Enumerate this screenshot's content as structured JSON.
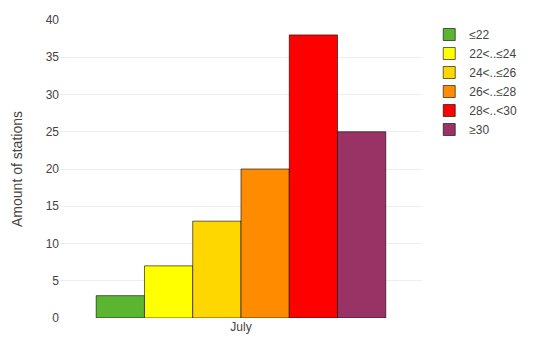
{
  "chart_data": {
    "type": "bar",
    "ylabel": "Amount of stations",
    "categories": [
      "July"
    ],
    "series": [
      {
        "name": "≤22",
        "color": "#5ab531",
        "values": [
          3
        ]
      },
      {
        "name": "22<..≤24",
        "color": "#ffff00",
        "values": [
          7
        ]
      },
      {
        "name": "24<..≤26",
        "color": "#ffd700",
        "values": [
          13
        ]
      },
      {
        "name": "26<..≤28",
        "color": "#ff8c00",
        "values": [
          20
        ]
      },
      {
        "name": "28<..<30",
        "color": "#ff0000",
        "values": [
          38
        ]
      },
      {
        "name": "≥30",
        "color": "#993366",
        "values": [
          25
        ]
      }
    ],
    "ylim": [
      0,
      40
    ],
    "yticks": [
      0,
      5,
      10,
      15,
      20,
      25,
      30,
      35,
      40
    ],
    "grid": true,
    "legend": "upper right"
  }
}
